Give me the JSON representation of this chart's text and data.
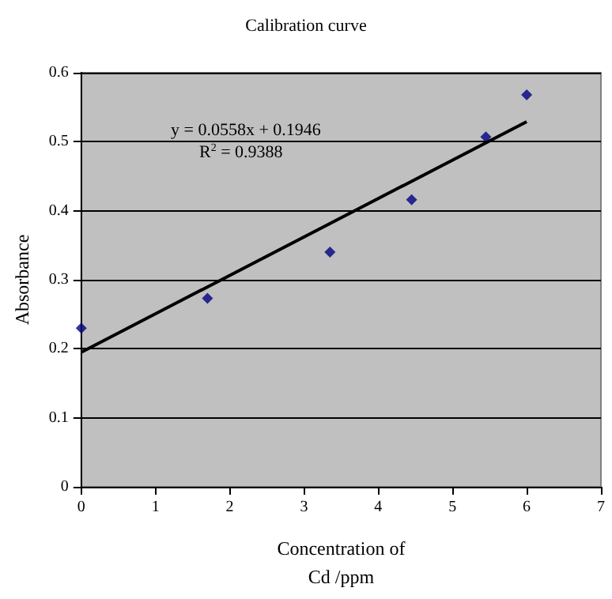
{
  "chart_data": {
    "type": "scatter",
    "title": "Calibration curve",
    "xlabel": "Concentration of\nCd /ppm",
    "ylabel": "Absorbance",
    "annotations": [
      "y = 0.0558x + 0.1946",
      "R$^{2}$ = 0.9388"
    ],
    "x": [
      0,
      1.7,
      3.35,
      4.45,
      5.45,
      6
    ],
    "series": [
      {
        "color": "#000080",
        "values": [
          0.23,
          0.273,
          0.34,
          0.416,
          0.507,
          0.568
        ]
      },
      {
        "type": "line",
        "color": "#000000",
        "marker": "none",
        "x": [
          0,
          6
        ],
        "values": [
          0.195,
          0.529
        ]
      }
    ],
    "xlim": [
      0,
      7
    ],
    "xticks": [
      0,
      1,
      2,
      3,
      4,
      5,
      6,
      7
    ],
    "ylim": [
      0,
      0.6
    ],
    "yticks": [
      0,
      0.1,
      0.2,
      0.3,
      0.4,
      0.5,
      0.6
    ],
    "grid": "y",
    "marker": "diamond",
    "line_style": "solid"
  }
}
